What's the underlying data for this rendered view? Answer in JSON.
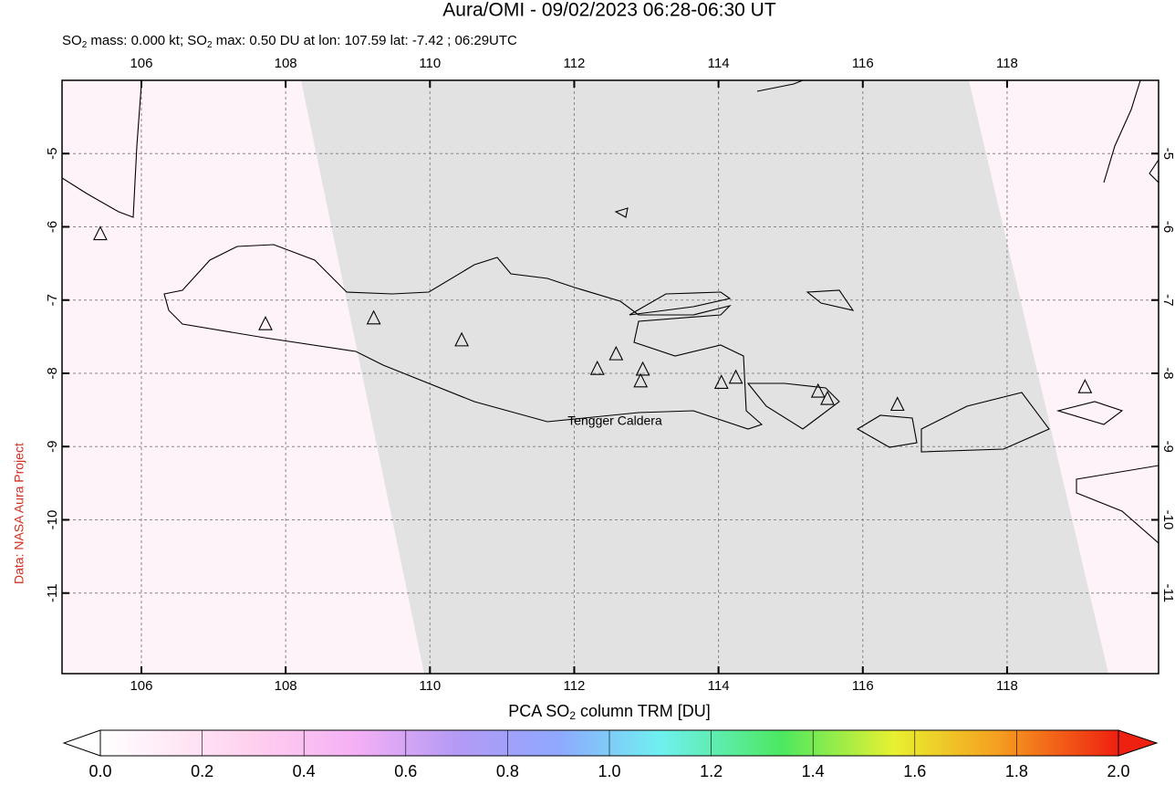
{
  "chart_data": {
    "type": "map",
    "title": "Aura/OMI - 09/02/2023 06:28-06:30 UT",
    "subtitle_parts": [
      "SO",
      "2",
      " mass: 0.000 kt; SO",
      "2",
      " max: 0.50 DU at lon: 107.59 lat: -7.42 ; 06:29UTC"
    ],
    "side_label": "Data: NASA Aura Project",
    "annotation": "Tengger Caldera",
    "xlim": [
      104.9,
      120.1
    ],
    "ylim": [
      -12.1,
      -4
    ],
    "xticks": [
      106,
      108,
      110,
      112,
      114,
      116,
      118
    ],
    "yticks": [
      -5,
      -6,
      -7,
      -8,
      -9,
      -10,
      -11
    ],
    "grid": true,
    "volcanoes": {
      "lon": [
        105.43,
        107.72,
        109.22,
        110.44,
        112.32,
        112.58,
        112.95,
        112.92,
        114.04,
        114.24,
        115.38,
        115.51,
        116.48,
        119.08
      ],
      "lat": [
        -6.1,
        -7.33,
        -7.25,
        -7.55,
        -7.94,
        -7.74,
        -7.95,
        -8.11,
        -8.13,
        -8.06,
        -8.25,
        -8.35,
        -8.43,
        -8.19
      ]
    },
    "colorbar": {
      "label_parts": [
        "PCA SO",
        "2",
        " column TRM [DU]"
      ],
      "lim": [
        0,
        2
      ],
      "ticks": [
        {
          "value": 0,
          "label": "0.0"
        },
        0.2,
        0.4,
        0.6,
        0.8,
        {
          "value": 1,
          "label": "1.0"
        },
        1.2,
        1.4,
        1.6,
        1.8,
        {
          "value": 2,
          "label": "2.0"
        }
      ]
    }
  }
}
